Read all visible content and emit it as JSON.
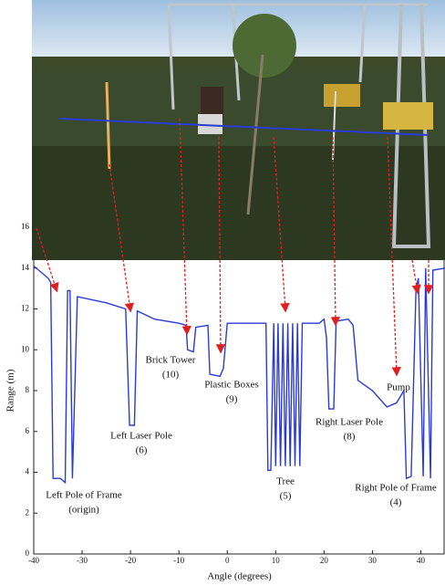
{
  "chart_data": {
    "type": "line",
    "xlabel": "Angle (degrees)",
    "ylabel": "Range (m)",
    "xlim": [
      -40,
      45
    ],
    "ylim": [
      0,
      16
    ],
    "xticks": [
      -40,
      -30,
      -20,
      -10,
      0,
      10,
      20,
      30,
      40
    ],
    "yticks": [
      0,
      2,
      4,
      6,
      8,
      10,
      12,
      14,
      16
    ],
    "series": [
      {
        "color": "#2a3bd6",
        "x": [
          -40,
          -37,
          -36.5,
          -36,
          -34.5,
          -33.5,
          -33,
          -32.5,
          -32,
          -31,
          -25,
          -21,
          -20.2,
          -19.2,
          -18.6,
          -15,
          -10,
          -8.5,
          -8.2,
          -7,
          -6.5,
          -4,
          -3.6,
          -1.5,
          -0.8,
          0,
          6,
          8,
          8.4,
          9,
          9.6,
          10,
          10.5,
          11,
          11.5,
          12,
          12.5,
          13,
          13.5,
          14,
          14.5,
          15,
          15.5,
          19,
          20,
          20.5,
          21,
          22,
          22.5,
          25,
          26,
          27,
          30,
          33,
          35,
          36.5,
          37,
          38,
          39,
          39.5,
          40.5,
          41,
          42,
          42.5,
          45
        ],
        "values": [
          14.1,
          13.5,
          13.3,
          3.7,
          3.7,
          3.5,
          12.9,
          12.9,
          3.7,
          12.6,
          12.3,
          12.0,
          6.3,
          6.3,
          11.9,
          11.5,
          11.3,
          11.2,
          10.0,
          9.9,
          11.1,
          11.2,
          8.8,
          8.7,
          9.1,
          11.3,
          11.3,
          11.3,
          4.1,
          4.1,
          11.3,
          4.3,
          11.3,
          4.3,
          11.3,
          4.3,
          11.3,
          4.3,
          11.3,
          4.3,
          11.3,
          4.3,
          11.3,
          11.3,
          11.5,
          10.6,
          7.1,
          7.1,
          11.4,
          11.5,
          11.2,
          8.5,
          8.0,
          7.2,
          7.4,
          8.0,
          3.7,
          3.8,
          13.0,
          13.5,
          3.8,
          14.0,
          3.7,
          13.9,
          14.0
        ]
      }
    ],
    "annotations": [
      {
        "text": "Left Pole of Frame",
        "sub": "(origin)"
      },
      {
        "text": "Left Laser Pole",
        "sub": "(6)"
      },
      {
        "text": "Brick Tower",
        "sub": "(10)"
      },
      {
        "text": "Plastic Boxes",
        "sub": "(9)"
      },
      {
        "text": "Tree",
        "sub": "(5)"
      },
      {
        "text": "Right Laser Pole",
        "sub": "(8)"
      },
      {
        "text": "Pump"
      },
      {
        "text": "Right Pole of Frame",
        "sub": "(4)"
      }
    ]
  }
}
